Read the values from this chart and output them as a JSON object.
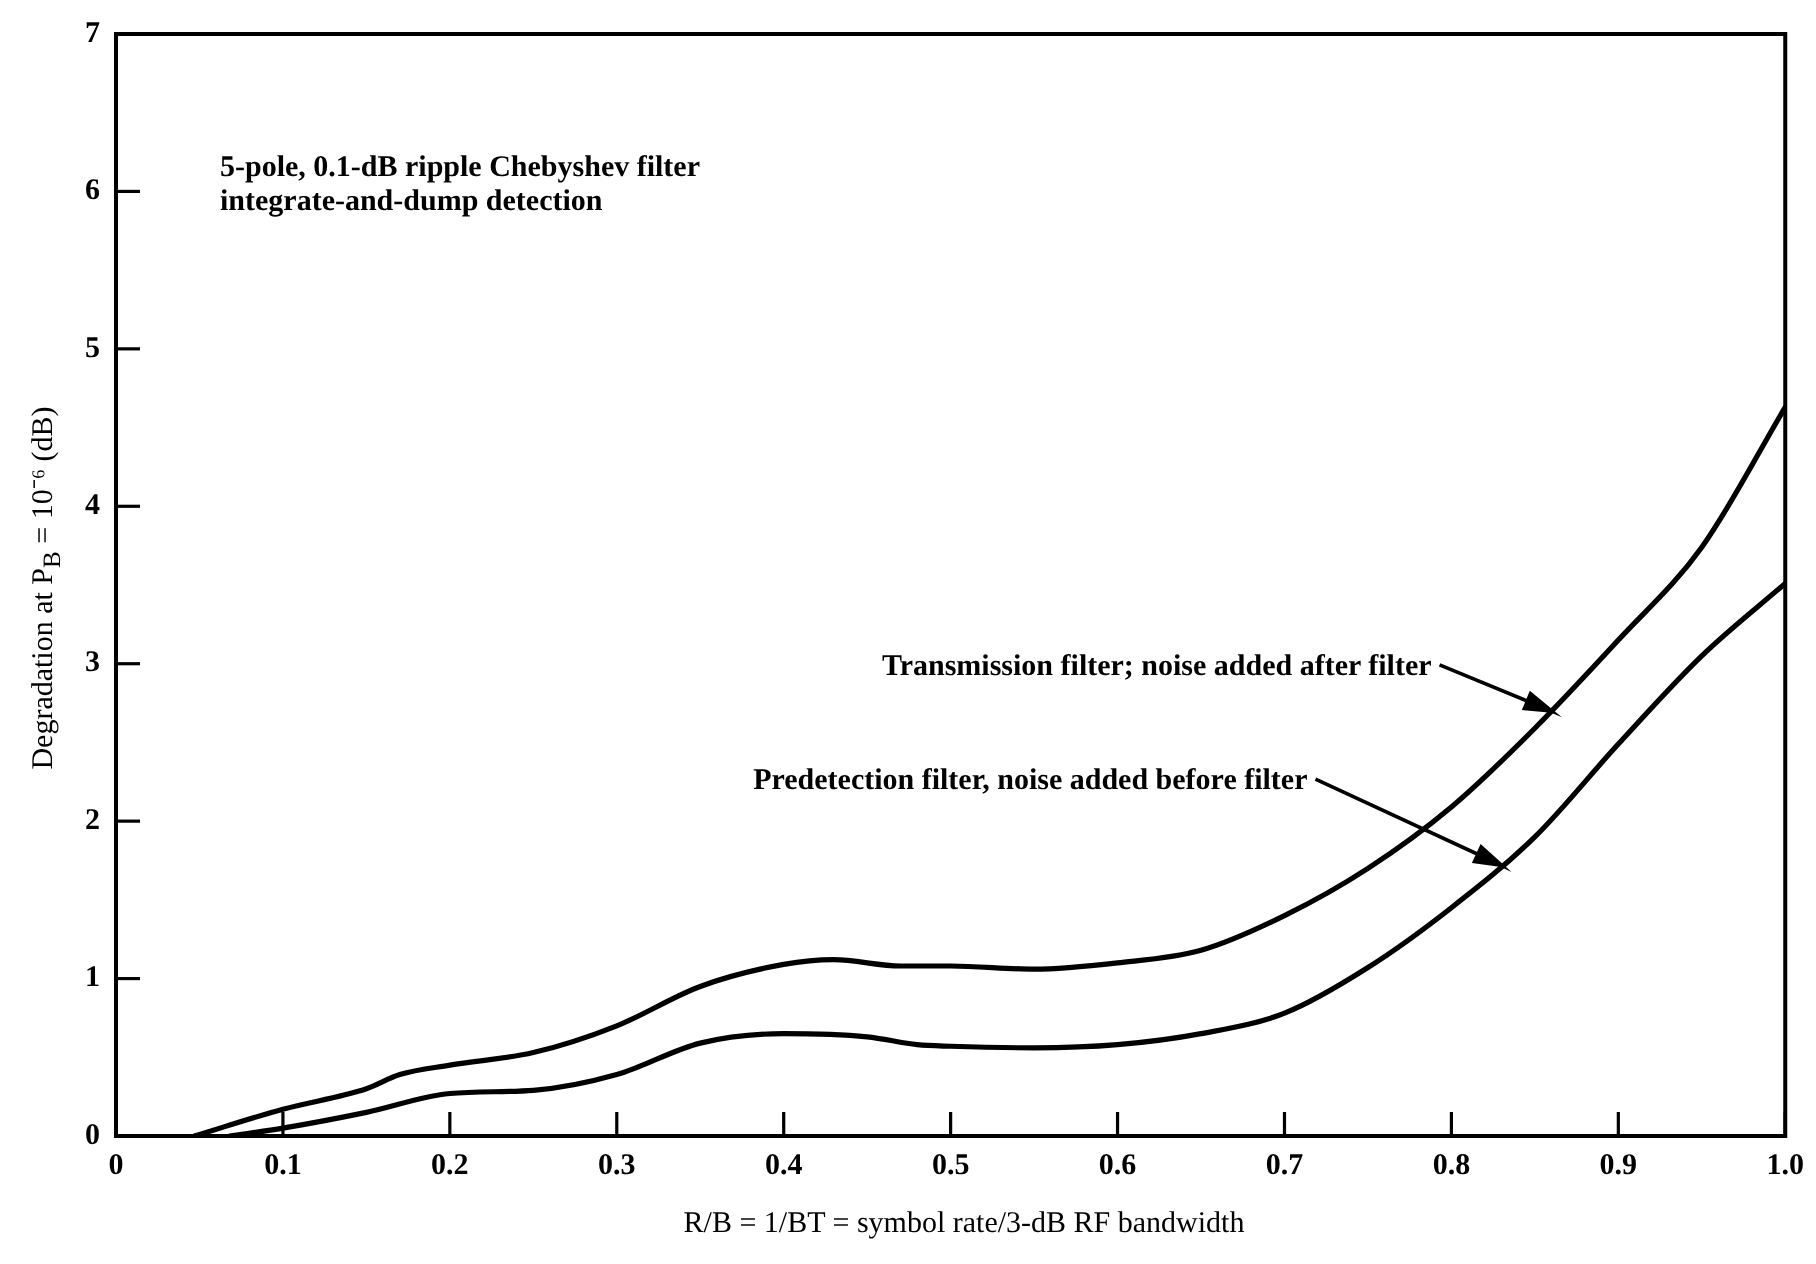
{
  "chart_data": {
    "type": "line",
    "xlabel": "R/B = 1/BT = symbol rate/3-dB RF bandwidth",
    "ylabel": "Degradation at P$_{B}$ = 10⁻⁶ (dB)",
    "xlim": [
      0,
      1
    ],
    "ylim": [
      0,
      7
    ],
    "xticks": [
      0,
      0.1,
      0.2,
      0.3,
      0.4,
      0.5,
      0.6,
      0.7,
      0.8,
      0.9,
      {
        "value": 1,
        "label": "1.0"
      }
    ],
    "yticks": [
      0,
      1,
      2,
      3,
      4,
      5,
      6,
      7
    ],
    "grid": false,
    "legend": false,
    "marker": "none",
    "line_style": "solid",
    "series": [
      {
        "color": "#000000",
        "x": [
          0.047,
          0.1,
          0.15,
          0.17,
          0.2,
          0.25,
          0.3,
          0.35,
          0.4,
          0.43,
          0.47,
          0.5,
          0.55,
          0.6,
          0.65,
          0.7,
          0.75,
          0.8,
          0.85,
          0.9,
          0.95,
          1.0
        ],
        "values": [
          0,
          0.17,
          0.3,
          0.39,
          0.45,
          0.53,
          0.7,
          0.95,
          1.09,
          1.12,
          1.08,
          1.08,
          1.06,
          1.1,
          1.18,
          1.4,
          1.7,
          2.09,
          2.59,
          3.15,
          3.74,
          4.63
        ]
      },
      {
        "color": "#000000",
        "x": [
          0.068,
          0.1,
          0.15,
          0.2,
          0.25,
          0.3,
          0.35,
          0.4,
          0.45,
          0.48,
          0.5,
          0.55,
          0.6,
          0.65,
          0.7,
          0.75,
          0.8,
          0.85,
          0.9,
          0.95,
          1.0
        ],
        "values": [
          0,
          0.05,
          0.15,
          0.27,
          0.29,
          0.39,
          0.59,
          0.65,
          0.63,
          0.58,
          0.57,
          0.56,
          0.58,
          0.65,
          0.78,
          1.07,
          1.45,
          1.9,
          2.49,
          3.05,
          3.51
        ]
      }
    ],
    "annotations": [
      "5-pole, 0.1-dB ripple Chebyshev filter",
      "integrate-and-dump detection",
      {
        "text": "Transmission filter; noise added after filter",
        "x": 0.86,
        "y": 2.7
      },
      {
        "text": "Predetection filter, noise added before filter",
        "x": 0.83,
        "y": 1.72
      }
    ]
  }
}
